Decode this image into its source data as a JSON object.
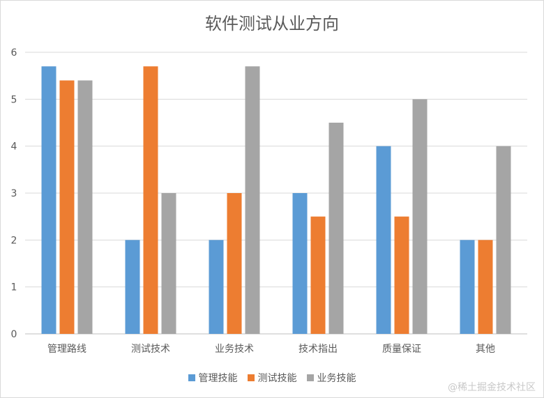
{
  "chart_data": {
    "type": "bar",
    "title": "软件测试从业方向",
    "categories": [
      "管理路线",
      "测试技术",
      "业务技术",
      "技术指出",
      "质量保证",
      "其他"
    ],
    "series": [
      {
        "name": "管理技能",
        "color": "#5b9bd5",
        "values": [
          5.7,
          2,
          2,
          3,
          4,
          2
        ]
      },
      {
        "name": "测试技能",
        "color": "#ed7d31",
        "values": [
          5.4,
          5.7,
          3,
          2.5,
          2.5,
          2
        ]
      },
      {
        "name": "业务技能",
        "color": "#a5a5a5",
        "values": [
          5.4,
          3,
          5.7,
          4.5,
          5,
          4
        ]
      }
    ],
    "ylim": [
      0,
      6
    ],
    "yticks": [
      0,
      1,
      2,
      3,
      4,
      5,
      6
    ],
    "grid": true,
    "legend": "bottom",
    "xlabel": "",
    "ylabel": ""
  },
  "watermark": "@稀土掘金技术社区"
}
